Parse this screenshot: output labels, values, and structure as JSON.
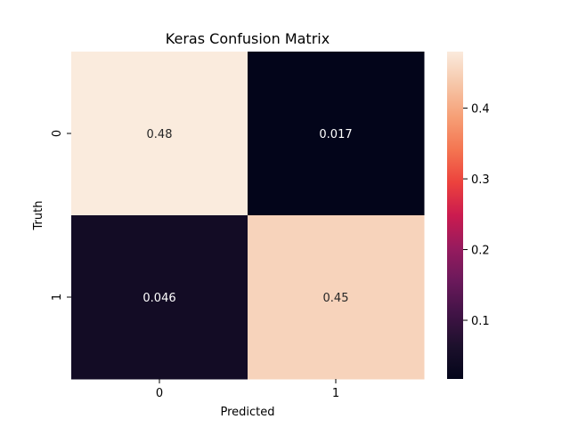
{
  "chart_data": {
    "type": "heatmap",
    "title": "Keras Confusion Matrix",
    "xlabel": "Predicted",
    "ylabel": "Truth",
    "x_categories": [
      "0",
      "1"
    ],
    "y_categories": [
      "0",
      "1"
    ],
    "values": [
      [
        0.48,
        0.017
      ],
      [
        0.046,
        0.45
      ]
    ],
    "cell_labels": [
      [
        "0.48",
        "0.017"
      ],
      [
        "0.046",
        "0.45"
      ]
    ],
    "colorbar": {
      "range": [
        0.017,
        0.48
      ],
      "ticks": [
        0.1,
        0.2,
        0.3,
        0.4
      ],
      "tick_labels": [
        "0.1",
        "0.2",
        "0.3",
        "0.4"
      ],
      "colormap": "rocket"
    }
  }
}
